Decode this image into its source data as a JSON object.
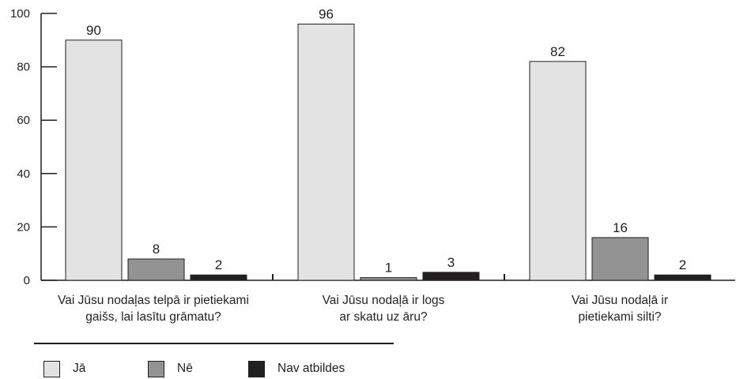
{
  "chart_data": {
    "type": "bar",
    "categories": [
      [
        "Vai Jūsu nodaļas telpā ir pietiekami",
        "gaišs, lai lasītu grāmatu?"
      ],
      [
        "Vai Jūsu nodaļā ir logs",
        "ar skatu uz āru?"
      ],
      [
        "Vai Jūsu nodaļā ir",
        "pietiekami silti?"
      ]
    ],
    "series": [
      {
        "name": "Jā",
        "color": "#e3e3e3",
        "values": [
          90,
          96,
          82
        ]
      },
      {
        "name": "Nē",
        "color": "#939393",
        "values": [
          8,
          1,
          16
        ]
      },
      {
        "name": "Nav atbildes",
        "color": "#231f20",
        "values": [
          2,
          3,
          2
        ]
      }
    ],
    "data_labels": [
      [
        "90",
        "8",
        "2"
      ],
      [
        "96",
        "1",
        "3"
      ],
      [
        "82",
        "16",
        "2"
      ]
    ],
    "yticks": [
      "0",
      "20",
      "40",
      "60",
      "80",
      "100"
    ],
    "ylim": [
      0,
      100
    ],
    "title": "",
    "xlabel": "",
    "ylabel": "",
    "grid": false,
    "legend_position": "bottom-left"
  },
  "legend": {
    "items": [
      {
        "label": "Jā",
        "color": "#e3e3e3"
      },
      {
        "label": "Nē",
        "color": "#939393"
      },
      {
        "label": "Nav atbildes",
        "color": "#231f20"
      }
    ]
  }
}
